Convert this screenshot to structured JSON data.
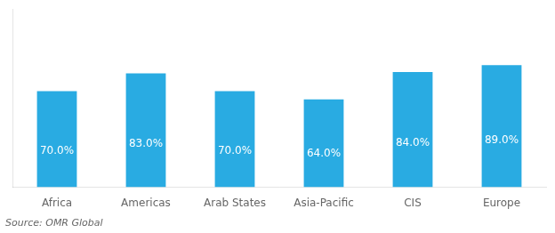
{
  "chart_data": {
    "type": "bar",
    "categories": [
      "Africa",
      "Americas",
      "Arab States",
      "Asia-Pacific",
      "CIS",
      "Europe"
    ],
    "values": [
      70.0,
      83.0,
      70.0,
      64.0,
      84.0,
      89.0
    ],
    "value_labels": [
      "70.0%",
      "83.0%",
      "70.0%",
      "64.0%",
      "84.0%",
      "89.0%"
    ],
    "data_labels": true,
    "color": "#29ABE2",
    "ylim": [
      0,
      130
    ],
    "grid": false,
    "tick_labels": "x",
    "annotations": [
      "Source: OMR Global"
    ]
  }
}
